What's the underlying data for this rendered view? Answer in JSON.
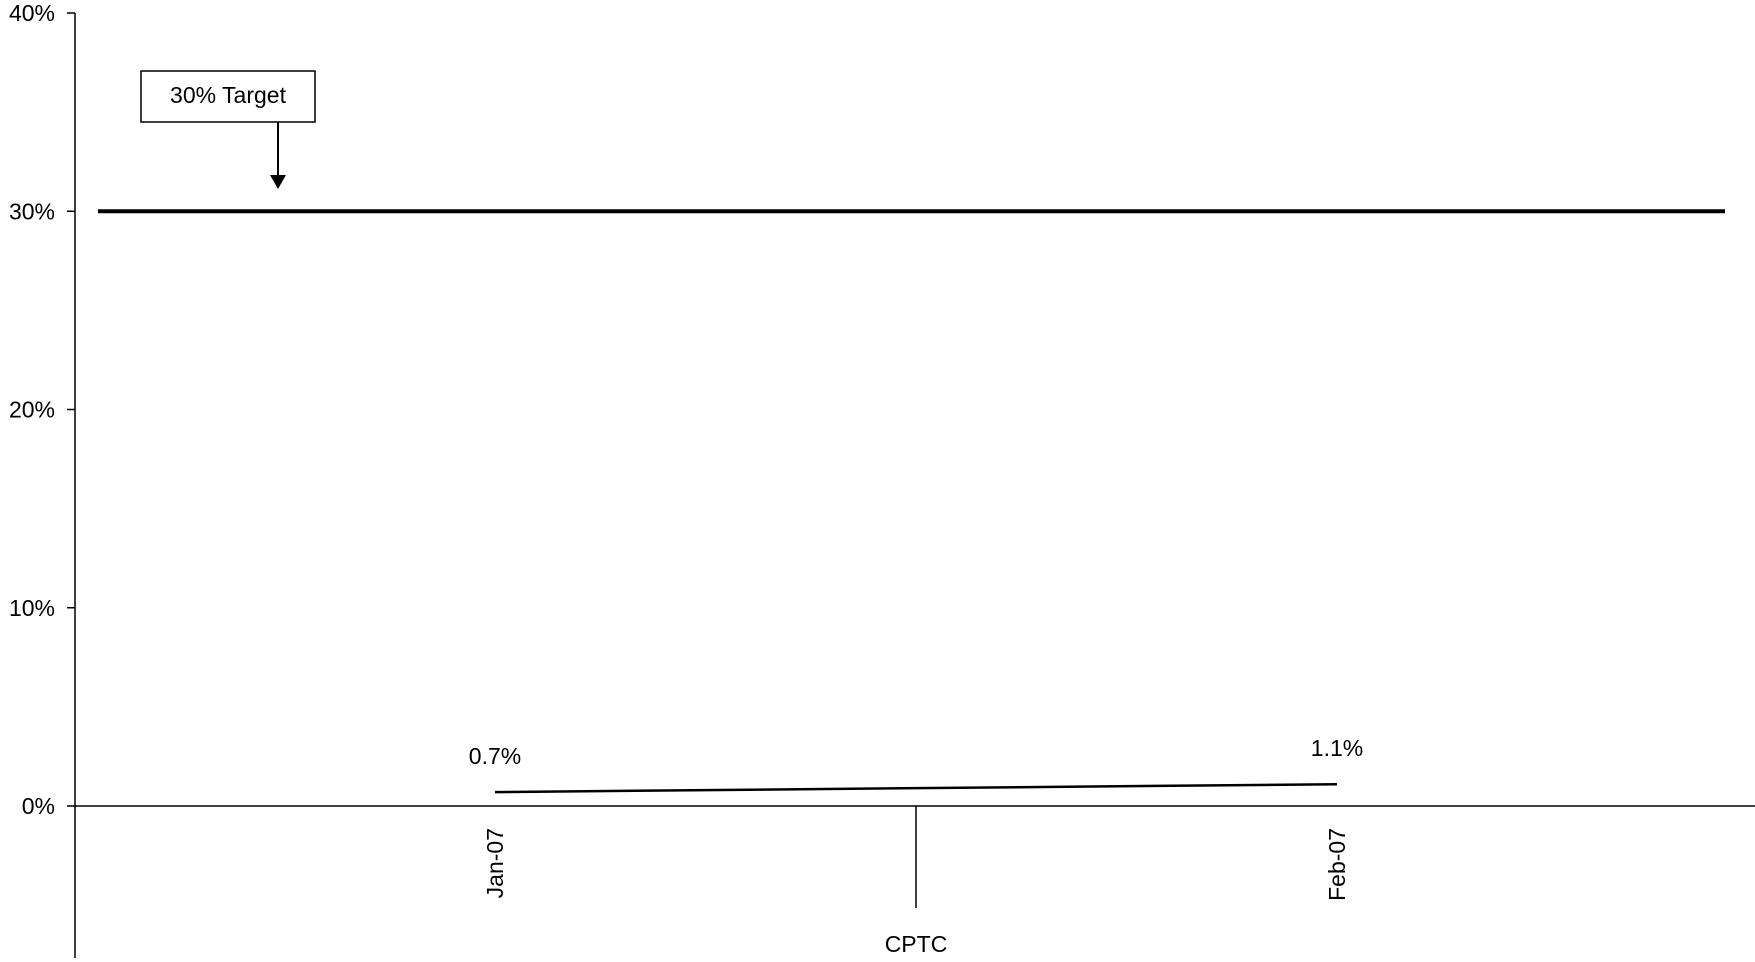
{
  "chart_data": {
    "type": "line",
    "categories": [
      "Jan-07",
      "Feb-07"
    ],
    "series": [
      {
        "values": [
          0.7,
          1.1
        ],
        "data_labels": [
          "0.7%",
          "1.1%"
        ],
        "color": "#000000"
      }
    ],
    "ylim": [
      0,
      40
    ],
    "yticks": [
      0,
      10,
      20,
      30,
      40
    ],
    "ytick_labels": [
      "0%",
      "10%",
      "20%",
      "30%",
      "40%"
    ],
    "xgroup_label": "CPTC",
    "target": {
      "value": 30,
      "label": "30% Target",
      "color": "#000000"
    },
    "grid": false,
    "legend": "none"
  }
}
